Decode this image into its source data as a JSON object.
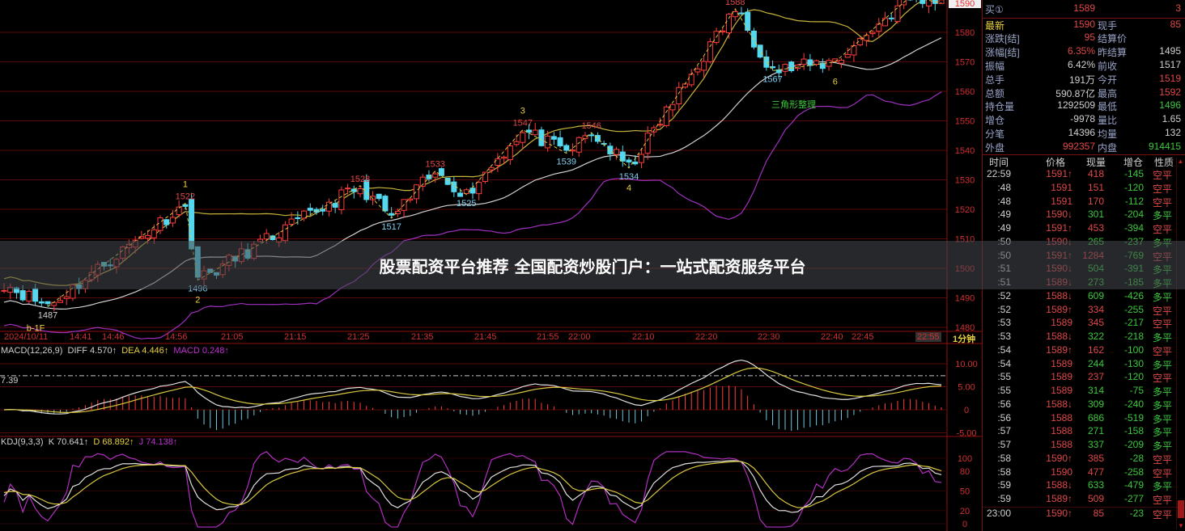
{
  "overlay_title": "股票配资平台推荐 全国配资炒股门户：一站式配资服务平台",
  "colors": {
    "up": "#ff3c3c",
    "down": "#54d8f0",
    "upper_band": "#c8b43c",
    "mid_band": "#d0d0d0",
    "lower_band": "#a030c0",
    "grid": "#5a0808",
    "axis_text": "#d03030"
  },
  "chart_data": {
    "type": "candlestick",
    "date": "2024/10/11",
    "interval": "1分钟",
    "price_ticks": [
      1580,
      1570,
      1560,
      1550,
      1540,
      1530,
      1520,
      1510,
      1500,
      1490,
      1480
    ],
    "ylim": [
      1480,
      1590
    ],
    "last_price": "1590",
    "time_labels": [
      "2024/10/11",
      "14:41",
      "14:46",
      "14:56",
      "21:05",
      "21:15",
      "21:25",
      "21:35",
      "21:45",
      "21:55",
      "22:00",
      "22:10",
      "22:20",
      "22:30",
      "22:40",
      "22:45",
      "22:55"
    ],
    "pivots": [
      {
        "time": "14:29",
        "price": 1495
      },
      {
        "time": "14:36",
        "price": 1487,
        "label": "1487",
        "wave": "b-1F"
      },
      {
        "time": "14:58",
        "price": 1522,
        "label": "1522",
        "wave": "1"
      },
      {
        "time": "21:00",
        "price": 1496,
        "label": "1496",
        "wave": "2"
      },
      {
        "time": "21:26",
        "price": 1528,
        "label": "1528"
      },
      {
        "time": "21:31",
        "price": 1517,
        "label": "1517"
      },
      {
        "time": "21:38",
        "price": 1533,
        "label": "1533"
      },
      {
        "time": "21:43",
        "price": 1525,
        "label": "1525"
      },
      {
        "time": "21:52",
        "price": 1547,
        "label": "1547",
        "wave": "3"
      },
      {
        "time": "21:59",
        "price": 1539,
        "label": "1539"
      },
      {
        "time": "22:03",
        "price": 1546,
        "label": "1546"
      },
      {
        "time": "22:09",
        "price": 1534,
        "label": "1534",
        "wave": "4"
      },
      {
        "time": "22:26",
        "price": 1588,
        "label": "1588",
        "wave": "5"
      },
      {
        "time": "22:32",
        "price": 1567,
        "label": "1567"
      },
      {
        "time": "22:42",
        "price": 1570,
        "wave": "6"
      },
      {
        "time": "22:54",
        "price": 1592,
        "label": "1592"
      },
      {
        "time": "22:59",
        "price": 1590
      }
    ],
    "annotation": "三角形整理",
    "macd": {
      "label": "MACD(12,26,9)",
      "diff": "DIFF 4.570↑",
      "dea": "DEA 4.446↑",
      "macd": "MACD 0.248↑",
      "ticks": [
        "10.00",
        "5.00",
        "0",
        "-5.00"
      ],
      "ref_line": "7.39",
      "ylim": [
        -5,
        12
      ]
    },
    "kdj": {
      "label": "KDJ(9,3,3)",
      "k": "K 70.641↑",
      "d": "D 68.892↑",
      "j": "J 74.138↑",
      "ticks": [
        "100",
        "80",
        "50",
        "20",
        "0"
      ],
      "ylim": [
        0,
        100
      ]
    }
  },
  "quote": {
    "bid_label": "买①",
    "bid_price": "1589",
    "bid_vol": "3",
    "rows": [
      {
        "l1": "最新",
        "v1": "1590",
        "c1": "r",
        "l2": "现手",
        "v2": "85",
        "c2": "r",
        "hl": true
      },
      {
        "l1": "涨跌[结]",
        "v1": "95",
        "c1": "r",
        "l2": "结算价",
        "v2": "",
        "c2": "w"
      },
      {
        "l1": "涨幅[结]",
        "v1": "6.35%",
        "c1": "r",
        "l2": "昨结算",
        "v2": "1495",
        "c2": "w"
      },
      {
        "l1": "振幅",
        "v1": "6.42%",
        "c1": "w",
        "l2": "前收",
        "v2": "1517",
        "c2": "w"
      },
      {
        "l1": "总手",
        "v1": "191万",
        "c1": "w",
        "l2": "今开",
        "v2": "1519",
        "c2": "r"
      },
      {
        "l1": "总额",
        "v1": "590.87亿",
        "c1": "w",
        "l2": "最高",
        "v2": "1592",
        "c2": "r"
      },
      {
        "l1": "持仓量",
        "v1": "1292509",
        "c1": "w",
        "l2": "最低",
        "v2": "1496",
        "c2": "g"
      },
      {
        "l1": "增仓",
        "v1": "-9978",
        "c1": "w",
        "l2": "量比",
        "v2": "1.65",
        "c2": "w"
      },
      {
        "l1": "分笔",
        "v1": "14396",
        "c1": "w",
        "l2": "均量",
        "v2": "132",
        "c2": "w"
      },
      {
        "l1": "外盘",
        "v1": "992357",
        "c1": "r",
        "l2": "内盘",
        "v2": "914415",
        "c2": "g"
      }
    ]
  },
  "trades": {
    "headers": [
      "时间",
      "价格",
      "现量",
      "增仓",
      "性质"
    ],
    "rows": [
      [
        "22:59",
        "1591↑",
        "418",
        "-145",
        "空平"
      ],
      [
        ":48",
        "1591",
        "151",
        "-120",
        "空平"
      ],
      [
        ":48",
        "1591",
        "170",
        "-112",
        "空平"
      ],
      [
        ":49",
        "1590↓",
        "301",
        "-204",
        "多平"
      ],
      [
        ":49",
        "1591↑",
        "453",
        "-394",
        "空平"
      ],
      [
        ":50",
        "1590↓",
        "265",
        "-237",
        "多平"
      ],
      [
        ":50",
        "1591↑",
        "1284",
        "-769",
        "空平"
      ],
      [
        ":51",
        "1590↓",
        "504",
        "-391",
        "多平"
      ],
      [
        ":51",
        "1589↓",
        "273",
        "-185",
        "多平"
      ],
      [
        ":52",
        "1588↓",
        "609",
        "-426",
        "多平"
      ],
      [
        ":52",
        "1589↑",
        "334",
        "-255",
        "空平"
      ],
      [
        ":53",
        "1589",
        "345",
        "-217",
        "空平"
      ],
      [
        ":53",
        "1588↓",
        "322",
        "-218",
        "多平"
      ],
      [
        ":54",
        "1589↑",
        "162",
        "-100",
        "空平"
      ],
      [
        ":54",
        "1589",
        "244",
        "-130",
        "多平"
      ],
      [
        ":55",
        "1589",
        "237",
        "-120",
        "空平"
      ],
      [
        ":55",
        "1589",
        "314",
        "-75",
        "多平"
      ],
      [
        ":56",
        "1588↓",
        "309",
        "-240",
        "多平"
      ],
      [
        ":56",
        "1588",
        "686",
        "-519",
        "多平"
      ],
      [
        ":57",
        "1588",
        "271",
        "-158",
        "多平"
      ],
      [
        ":57",
        "1588",
        "337",
        "-209",
        "多平"
      ],
      [
        ":58",
        "1590↑",
        "385",
        "-28",
        "空平"
      ],
      [
        ":58",
        "1590",
        "477",
        "-258",
        "空平"
      ],
      [
        ":59",
        "1588↓",
        "633",
        "-479",
        "多平"
      ],
      [
        ":59",
        "1589↑",
        "509",
        "-277",
        "空平"
      ],
      [
        "23:00",
        "1590↑",
        "85",
        "-23",
        "空平"
      ]
    ]
  }
}
